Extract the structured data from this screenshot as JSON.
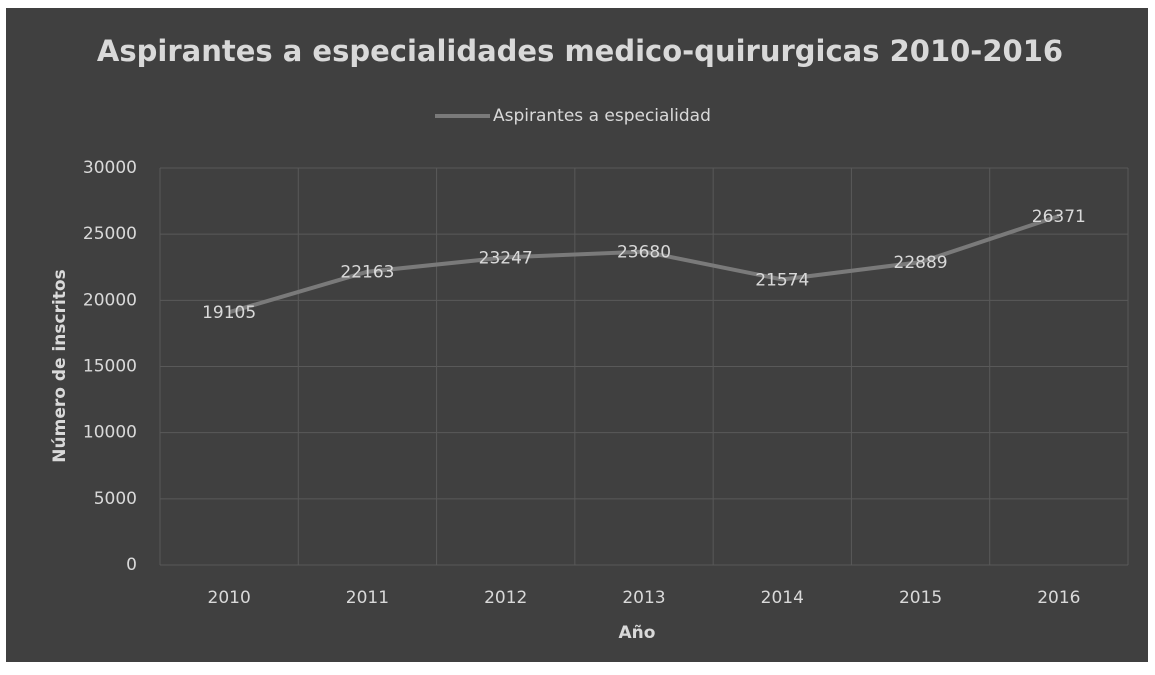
{
  "chart_data": {
    "type": "line",
    "title": "Aspirantes a especialidades medico-quirurgicas 2010-2016",
    "xlabel": "Año",
    "ylabel": "Número de inscritos",
    "categories": [
      "2010",
      "2011",
      "2012",
      "2013",
      "2014",
      "2015",
      "2016"
    ],
    "series": [
      {
        "name": "Aspirantes a especialidad",
        "color": "#7a7a7a",
        "values": [
          19105,
          22163,
          23247,
          23680,
          21574,
          22889,
          26371
        ]
      }
    ],
    "ylim": [
      0,
      30000
    ],
    "yticks": [
      0,
      5000,
      10000,
      15000,
      20000,
      25000,
      30000
    ],
    "grid": true,
    "legend": "top",
    "data_labels": true
  }
}
